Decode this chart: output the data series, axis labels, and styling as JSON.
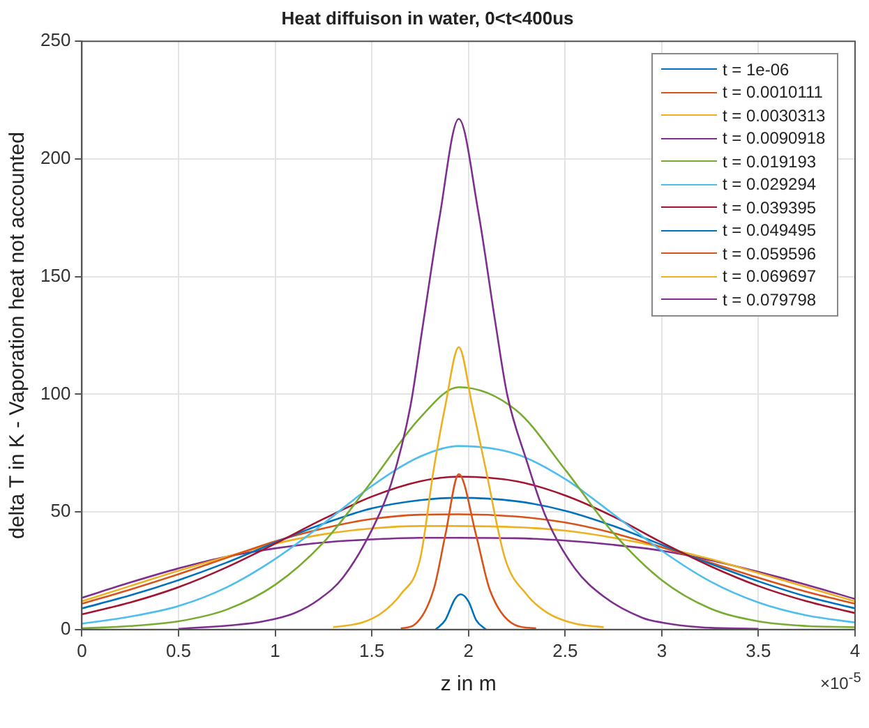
{
  "chart_data": {
    "type": "line",
    "title": "Heat diffuison in water, 0<t<400us",
    "xlabel": "z in m",
    "ylabel": "delta T in K - Vaporation heat not accounted",
    "annotations": [
      "×10$^{-5}$"
    ],
    "xlim": [
      0,
      4
    ],
    "xticks": [
      0,
      0.5,
      1,
      1.5,
      2,
      2.5,
      3,
      3.5,
      4
    ],
    "ylim": [
      0,
      250
    ],
    "yticks": [
      0,
      50,
      100,
      150,
      200,
      250
    ],
    "grid": true,
    "legend": "top right",
    "marker": "none",
    "line_style": "solid",
    "series": [
      {
        "name": "t = 1e-06",
        "color": "#0072bd",
        "x": [
          1.83,
          1.88,
          1.93,
          1.96,
          2.0,
          2.04,
          2.09
        ],
        "values": [
          0,
          4,
          13,
          15,
          12,
          4,
          0
        ]
      },
      {
        "name": "t = 0.0010111",
        "color": "#d95319",
        "x": [
          1.65,
          1.72,
          1.82,
          1.88,
          1.95,
          2.04,
          2.11,
          2.24,
          2.35
        ],
        "values": [
          0.5,
          2,
          17,
          40,
          66,
          40,
          17,
          2,
          0.5
        ]
      },
      {
        "name": "t = 0.0030313",
        "color": "#edb120",
        "x": [
          1.3,
          1.45,
          1.55,
          1.65,
          1.75,
          1.82,
          1.88,
          1.95,
          2.02,
          2.09,
          2.19,
          2.3,
          2.41,
          2.55,
          2.7
        ],
        "values": [
          1,
          3,
          7,
          15,
          30,
          68,
          95,
          120,
          95,
          68,
          30,
          15,
          7,
          2.5,
          1
        ]
      },
      {
        "name": "t = 0.0090918",
        "color": "#7e2f8e",
        "x": [
          0.5,
          0.8,
          0.94,
          1.1,
          1.23,
          1.35,
          1.51,
          1.6,
          1.7,
          1.76,
          1.85,
          1.95,
          2.05,
          2.14,
          2.2,
          2.3,
          2.4,
          2.55,
          2.7,
          2.9,
          3.0,
          3.2,
          3.5
        ],
        "values": [
          0.3,
          2,
          3.5,
          7,
          13,
          22,
          44,
          62,
          95,
          127,
          175,
          217,
          178,
          130,
          100,
          72,
          48,
          26,
          14,
          5,
          3,
          1,
          0.3
        ]
      },
      {
        "name": "t = 0.019193",
        "color": "#77ac30",
        "x": [
          0,
          0.25,
          0.5,
          0.75,
          1,
          1.25,
          1.5,
          1.75,
          1.95,
          2.25,
          2.5,
          2.75,
          3,
          3.25,
          3.5,
          3.75,
          4
        ],
        "values": [
          0.5,
          1.5,
          3.5,
          8.5,
          19,
          37,
          63,
          90,
          103,
          93,
          68,
          41,
          21,
          9,
          3.5,
          1.5,
          1
        ]
      },
      {
        "name": "t = 0.029294",
        "color": "#4dbeee",
        "x": [
          0,
          0.25,
          0.5,
          0.75,
          1,
          1.25,
          1.5,
          1.75,
          1.95,
          2.25,
          2.5,
          2.75,
          3,
          3.25,
          3.5,
          3.75,
          4
        ],
        "values": [
          2.5,
          5.5,
          10,
          18,
          30,
          45,
          61,
          73.5,
          78,
          74.5,
          64,
          49,
          33.5,
          20.5,
          11.5,
          6,
          3
        ]
      },
      {
        "name": "t = 0.039395",
        "color": "#a2142f",
        "x": [
          0,
          0.25,
          0.5,
          0.75,
          1,
          1.25,
          1.5,
          1.75,
          1.95,
          2.25,
          2.5,
          2.75,
          3,
          3.25,
          3.5,
          3.75,
          4
        ],
        "values": [
          6.5,
          11.5,
          18,
          26.5,
          36.5,
          47,
          56.5,
          63,
          65,
          63,
          57,
          48,
          37,
          27,
          18.5,
          12,
          7
        ]
      },
      {
        "name": "t = 0.049495",
        "color": "#0072bd",
        "x": [
          0,
          0.25,
          0.5,
          0.75,
          1,
          1.25,
          1.5,
          1.75,
          1.95,
          2.25,
          2.5,
          2.75,
          3,
          3.25,
          3.5,
          3.75,
          4
        ],
        "values": [
          9,
          14.5,
          21,
          28.5,
          37,
          45,
          51.5,
          55,
          56,
          54.5,
          50.5,
          44,
          36,
          28,
          20.5,
          14,
          9
        ]
      },
      {
        "name": "t = 0.059596",
        "color": "#d95319",
        "x": [
          0,
          0.25,
          0.5,
          0.75,
          1,
          1.25,
          1.5,
          1.75,
          1.95,
          2.25,
          2.5,
          2.75,
          3,
          3.25,
          3.5,
          3.75,
          4
        ],
        "values": [
          11,
          17,
          23.5,
          30.5,
          37.5,
          43,
          47,
          48.8,
          49,
          48,
          45.5,
          41,
          35,
          28.5,
          22,
          16,
          11
        ]
      },
      {
        "name": "t = 0.069697",
        "color": "#edb120",
        "x": [
          0,
          0.25,
          0.5,
          0.75,
          1,
          1.25,
          1.5,
          1.75,
          1.95,
          2.25,
          2.5,
          2.75,
          3,
          3.25,
          3.5,
          3.75,
          4
        ],
        "values": [
          12,
          18.5,
          25,
          31,
          36.5,
          40.5,
          43,
          44,
          44,
          43.5,
          42,
          39,
          35,
          30,
          24,
          18,
          12
        ]
      },
      {
        "name": "t = 0.079798",
        "color": "#7e2f8e",
        "x": [
          0,
          0.25,
          0.5,
          0.75,
          1,
          1.25,
          1.5,
          1.75,
          1.95,
          2.25,
          2.5,
          2.75,
          3,
          3.25,
          3.5,
          3.75,
          4
        ],
        "values": [
          13.5,
          20,
          26,
          31,
          34.5,
          37,
          38.3,
          39,
          39,
          38.8,
          37.8,
          36,
          33.5,
          29.5,
          24.5,
          19,
          13
        ]
      }
    ]
  }
}
